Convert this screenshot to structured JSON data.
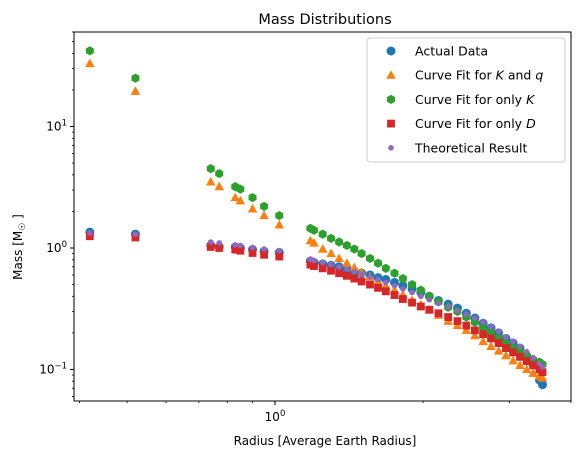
{
  "chart_data": {
    "type": "scatter",
    "title": "Mass Distributions",
    "xlabel": "Radius [Average Earth Radius]",
    "ylabel": "Mass [M☉]",
    "xscale": "log",
    "yscale": "log",
    "xlim": [
      0.39,
      4.0
    ],
    "ylim": [
      0.055,
      60
    ],
    "xticks": [
      {
        "value": 1,
        "label": "10⁰"
      }
    ],
    "yticks": [
      {
        "value": 0.1,
        "label": "10⁻¹"
      },
      {
        "value": 1,
        "label": "10⁰"
      },
      {
        "value": 10,
        "label": "10¹"
      }
    ],
    "grid": false,
    "legend_position": "top-right",
    "series": [
      {
        "name": "Actual Data",
        "marker": "circle",
        "color": "#1f77b4",
        "x": [
          0.42,
          0.52,
          0.74,
          0.77,
          0.83,
          0.85,
          0.9,
          0.95,
          1.02,
          1.18,
          1.2,
          1.25,
          1.3,
          1.35,
          1.4,
          1.45,
          1.5,
          1.56,
          1.62,
          1.68,
          1.75,
          1.82,
          1.9,
          1.98,
          2.06,
          2.15,
          2.25,
          2.35,
          2.45,
          2.55,
          2.65,
          2.75,
          2.85,
          2.95,
          3.05,
          3.15,
          3.25,
          3.35,
          3.45,
          3.5
        ],
        "y": [
          1.35,
          1.3,
          1.05,
          1.02,
          1.02,
          1.0,
          0.97,
          0.94,
          0.92,
          0.78,
          0.76,
          0.74,
          0.72,
          0.7,
          0.67,
          0.64,
          0.62,
          0.6,
          0.57,
          0.55,
          0.52,
          0.49,
          0.46,
          0.43,
          0.4,
          0.37,
          0.345,
          0.32,
          0.29,
          0.265,
          0.24,
          0.22,
          0.2,
          0.18,
          0.165,
          0.15,
          0.13,
          0.11,
          0.082,
          0.075
        ]
      },
      {
        "name": "Curve Fit for $K$ and $q$",
        "marker": "triangle",
        "color": "#ff7f0e",
        "x": [
          0.42,
          0.52,
          0.74,
          0.77,
          0.83,
          0.85,
          0.9,
          0.95,
          1.02,
          1.18,
          1.2,
          1.25,
          1.3,
          1.35,
          1.4,
          1.45,
          1.5,
          1.56,
          1.62,
          1.68,
          1.75,
          1.82,
          1.9,
          1.98,
          2.06,
          2.15,
          2.25,
          2.35,
          2.45,
          2.55,
          2.65,
          2.75,
          2.85,
          2.95,
          3.05,
          3.15,
          3.25,
          3.35,
          3.45,
          3.5
        ],
        "y": [
          33,
          19.5,
          3.5,
          3.2,
          2.6,
          2.45,
          2.1,
          1.85,
          1.55,
          1.15,
          1.1,
          0.98,
          0.9,
          0.82,
          0.75,
          0.69,
          0.63,
          0.58,
          0.53,
          0.49,
          0.45,
          0.41,
          0.37,
          0.34,
          0.31,
          0.28,
          0.25,
          0.23,
          0.21,
          0.19,
          0.17,
          0.155,
          0.142,
          0.13,
          0.118,
          0.108,
          0.1,
          0.093,
          0.088,
          0.085
        ]
      },
      {
        "name": "Curve Fit for only $K$",
        "marker": "hexagon",
        "color": "#2ca02c",
        "x": [
          0.42,
          0.52,
          0.74,
          0.77,
          0.83,
          0.85,
          0.9,
          0.95,
          1.02,
          1.18,
          1.2,
          1.25,
          1.3,
          1.35,
          1.4,
          1.45,
          1.5,
          1.56,
          1.62,
          1.68,
          1.75,
          1.82,
          1.9,
          1.98,
          2.06,
          2.15,
          2.25,
          2.35,
          2.45,
          2.55,
          2.65,
          2.75,
          2.85,
          2.95,
          3.05,
          3.15,
          3.25,
          3.35,
          3.45,
          3.5
        ],
        "y": [
          42,
          25,
          4.5,
          4.1,
          3.2,
          3.05,
          2.6,
          2.2,
          1.85,
          1.45,
          1.4,
          1.3,
          1.2,
          1.12,
          1.05,
          0.98,
          0.9,
          0.82,
          0.75,
          0.68,
          0.62,
          0.56,
          0.5,
          0.45,
          0.4,
          0.36,
          0.325,
          0.3,
          0.27,
          0.245,
          0.22,
          0.2,
          0.18,
          0.165,
          0.15,
          0.14,
          0.13,
          0.12,
          0.115,
          0.11
        ]
      },
      {
        "name": "Curve Fit for only $D$",
        "marker": "square",
        "color": "#d62728",
        "x": [
          0.42,
          0.52,
          0.74,
          0.77,
          0.83,
          0.85,
          0.9,
          0.95,
          1.02,
          1.18,
          1.2,
          1.25,
          1.3,
          1.35,
          1.4,
          1.45,
          1.5,
          1.56,
          1.62,
          1.68,
          1.75,
          1.82,
          1.9,
          1.98,
          2.06,
          2.15,
          2.25,
          2.35,
          2.45,
          2.55,
          2.65,
          2.75,
          2.85,
          2.95,
          3.05,
          3.15,
          3.25,
          3.35,
          3.45,
          3.5
        ],
        "y": [
          1.25,
          1.22,
          1.02,
          1.0,
          0.97,
          0.95,
          0.91,
          0.88,
          0.85,
          0.73,
          0.71,
          0.68,
          0.65,
          0.62,
          0.59,
          0.56,
          0.53,
          0.5,
          0.47,
          0.44,
          0.41,
          0.38,
          0.355,
          0.33,
          0.31,
          0.29,
          0.27,
          0.25,
          0.23,
          0.21,
          0.195,
          0.18,
          0.165,
          0.15,
          0.138,
          0.127,
          0.117,
          0.108,
          0.1,
          0.095
        ]
      },
      {
        "name": "Theoretical Result",
        "marker": "dot",
        "color": "#9467bd",
        "x": [
          0.42,
          0.52,
          0.74,
          0.77,
          0.83,
          0.85,
          0.9,
          0.95,
          1.02,
          1.18,
          1.2,
          1.25,
          1.3,
          1.35,
          1.4,
          1.45,
          1.5,
          1.56,
          1.62,
          1.68,
          1.75,
          1.82,
          1.9,
          1.98,
          2.06,
          2.15,
          2.25,
          2.35,
          2.45,
          2.55,
          2.65,
          2.75,
          2.85,
          2.95,
          3.05,
          3.15,
          3.25,
          3.35,
          3.45,
          3.5
        ],
        "y": [
          1.33,
          1.3,
          1.12,
          1.1,
          1.06,
          1.05,
          1.01,
          0.98,
          0.95,
          0.81,
          0.79,
          0.76,
          0.73,
          0.7,
          0.67,
          0.64,
          0.61,
          0.58,
          0.55,
          0.52,
          0.49,
          0.46,
          0.43,
          0.4,
          0.375,
          0.35,
          0.33,
          0.305,
          0.285,
          0.265,
          0.245,
          0.225,
          0.205,
          0.185,
          0.17,
          0.155,
          0.14,
          0.125,
          0.112,
          0.105
        ]
      }
    ]
  }
}
